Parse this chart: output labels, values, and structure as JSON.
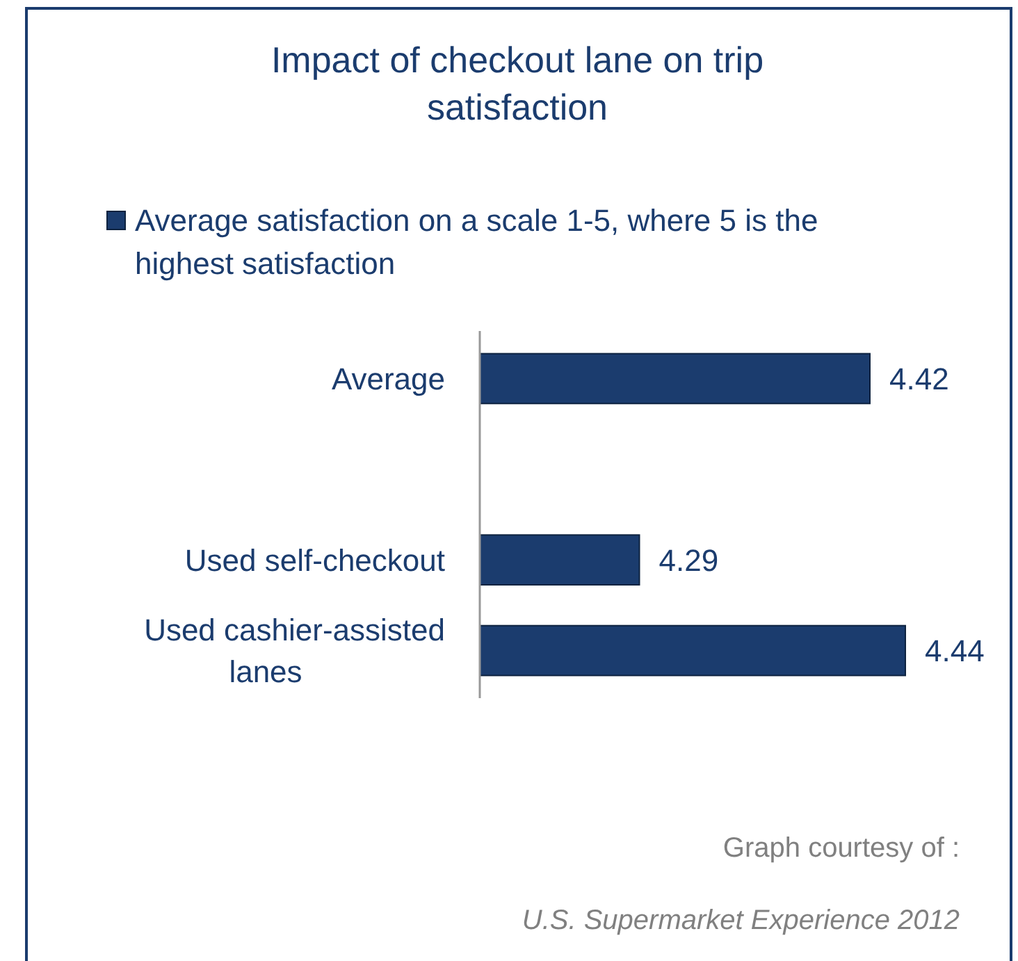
{
  "chart_data": {
    "type": "bar",
    "orientation": "horizontal",
    "title": "Impact of checkout lane on trip satisfaction",
    "categories": [
      "Average",
      null,
      "Used self-checkout",
      "Used cashier-assisted lanes"
    ],
    "series": [
      {
        "name": "Average satisfaction on a scale 1-5, where 5 is the highest satisfaction",
        "color": "#1b3c6e",
        "values": [
          4.42,
          null,
          4.29,
          4.44
        ]
      }
    ],
    "xlim": [
      4.2,
      4.44
    ],
    "tick_labels": "y",
    "data_labels": true,
    "legend": "top",
    "annotations": [
      "Graph courtesy of :",
      "U.S. Supermarket Experience 2012"
    ]
  }
}
